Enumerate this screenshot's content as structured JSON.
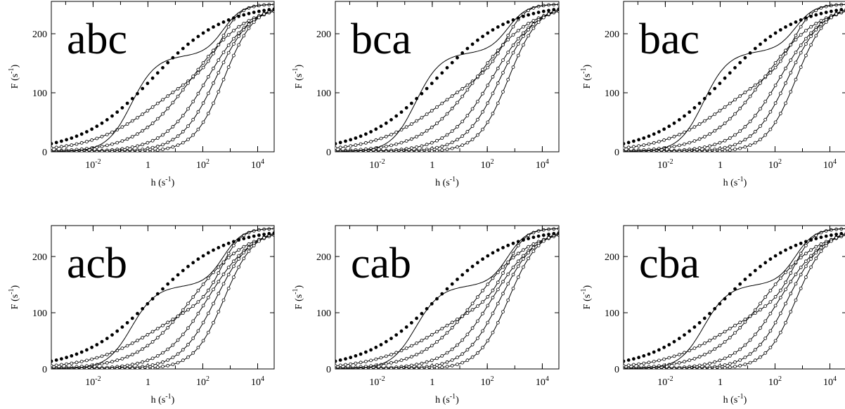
{
  "figure": {
    "background": "#ffffff",
    "ink": "#000000"
  },
  "axes_common": {
    "ylabel": "F (s",
    "ylabel_sup": "-1",
    "ylabel_end": ")",
    "xlabel": "h (s",
    "xlabel_sup": "-1",
    "xlabel_end": ")",
    "x_scale": "log",
    "xlim": [
      0.0003,
      40000
    ],
    "ylim": [
      0,
      250
    ],
    "x_ticks": [
      {
        "value": 0.01,
        "base": "10",
        "exp": "-2"
      },
      {
        "value": 1,
        "base": "1",
        "exp": ""
      },
      {
        "value": 100,
        "base": "10",
        "exp": "2"
      },
      {
        "value": 10000,
        "base": "10",
        "exp": "4"
      }
    ],
    "y_ticks": [
      {
        "value": 0,
        "label": "0"
      },
      {
        "value": 100,
        "label": "100"
      },
      {
        "value": 200,
        "label": "200"
      }
    ],
    "grid": false,
    "legend": "none"
  },
  "chart_data": [
    {
      "type": "line",
      "title": "abc",
      "xlabel": "h (s-1)",
      "ylabel": "F (s-1)",
      "x_scale": "log",
      "ylim": [
        0,
        250
      ],
      "series": [
        {
          "style": "line+open-markers",
          "mid": 2,
          "width": 1.2,
          "plateau": 160
        },
        {
          "style": "line+open-markers",
          "mid": 40,
          "width": 1.0,
          "plateau": 0
        },
        {
          "style": "line+open-markers",
          "mid": 150,
          "width": 0.8,
          "plateau": 0
        },
        {
          "style": "line+open-markers",
          "mid": 300,
          "width": 0.65,
          "plateau": 0
        },
        {
          "style": "line+open-markers",
          "mid": 600,
          "width": 0.55,
          "plateau": 0
        },
        {
          "style": "line-only",
          "mid": 0.25,
          "width": 0.45,
          "plateau": 163
        },
        {
          "style": "filled-markers",
          "mid": 1.5,
          "width": 1.3,
          "plateau": 0
        }
      ],
      "y_max": 250,
      "top_mid": 550,
      "top_width": 0.35
    },
    {
      "type": "line",
      "title": "bca",
      "xlabel": "h (s-1)",
      "ylabel": "F (s-1)",
      "x_scale": "log",
      "ylim": [
        0,
        250
      ],
      "series": [
        {
          "style": "line+open-markers",
          "mid": 2,
          "width": 1.2,
          "plateau": 160
        },
        {
          "style": "line+open-markers",
          "mid": 40,
          "width": 1.0,
          "plateau": 0
        },
        {
          "style": "line+open-markers",
          "mid": 150,
          "width": 0.8,
          "plateau": 0
        },
        {
          "style": "line+open-markers",
          "mid": 300,
          "width": 0.65,
          "plateau": 0
        },
        {
          "style": "line+open-markers",
          "mid": 600,
          "width": 0.55,
          "plateau": 0
        },
        {
          "style": "line-only",
          "mid": 0.25,
          "width": 0.45,
          "plateau": 168
        },
        {
          "style": "filled-markers",
          "mid": 1.5,
          "width": 1.3,
          "plateau": 0
        }
      ],
      "y_max": 250,
      "top_mid": 550,
      "top_width": 0.35
    },
    {
      "type": "line",
      "title": "bac",
      "xlabel": "h (s-1)",
      "ylabel": "F (s-1)",
      "x_scale": "log",
      "ylim": [
        0,
        250
      ],
      "series": [
        {
          "style": "line+open-markers",
          "mid": 2,
          "width": 1.2,
          "plateau": 160
        },
        {
          "style": "line+open-markers",
          "mid": 40,
          "width": 1.0,
          "plateau": 0
        },
        {
          "style": "line+open-markers",
          "mid": 150,
          "width": 0.8,
          "plateau": 0
        },
        {
          "style": "line+open-markers",
          "mid": 300,
          "width": 0.65,
          "plateau": 0
        },
        {
          "style": "line+open-markers",
          "mid": 600,
          "width": 0.55,
          "plateau": 0
        },
        {
          "style": "line-only",
          "mid": 0.25,
          "width": 0.45,
          "plateau": 170
        },
        {
          "style": "filled-markers",
          "mid": 1.5,
          "width": 1.3,
          "plateau": 0
        }
      ],
      "y_max": 250,
      "top_mid": 550,
      "top_width": 0.35
    },
    {
      "type": "line",
      "title": "acb",
      "xlabel": "h (s-1)",
      "ylabel": "F (s-1)",
      "x_scale": "log",
      "ylim": [
        0,
        250
      ],
      "series": [
        {
          "style": "line+open-markers",
          "mid": 2,
          "width": 1.2,
          "plateau": 140
        },
        {
          "style": "line+open-markers",
          "mid": 40,
          "width": 1.0,
          "plateau": 0
        },
        {
          "style": "line+open-markers",
          "mid": 150,
          "width": 0.8,
          "plateau": 0
        },
        {
          "style": "line+open-markers",
          "mid": 300,
          "width": 0.65,
          "plateau": 0
        },
        {
          "style": "line+open-markers",
          "mid": 600,
          "width": 0.55,
          "plateau": 0
        },
        {
          "style": "line-only",
          "mid": 0.25,
          "width": 0.45,
          "plateau": 148
        },
        {
          "style": "filled-markers",
          "mid": 1.5,
          "width": 1.3,
          "plateau": 0
        }
      ],
      "y_max": 250,
      "top_mid": 550,
      "top_width": 0.35
    },
    {
      "type": "line",
      "title": "cab",
      "xlabel": "h (s-1)",
      "ylabel": "F (s-1)",
      "x_scale": "log",
      "ylim": [
        0,
        250
      ],
      "series": [
        {
          "style": "line+open-markers",
          "mid": 2,
          "width": 1.2,
          "plateau": 140
        },
        {
          "style": "line+open-markers",
          "mid": 40,
          "width": 1.0,
          "plateau": 0
        },
        {
          "style": "line+open-markers",
          "mid": 150,
          "width": 0.8,
          "plateau": 0
        },
        {
          "style": "line+open-markers",
          "mid": 300,
          "width": 0.65,
          "plateau": 0
        },
        {
          "style": "line+open-markers",
          "mid": 600,
          "width": 0.55,
          "plateau": 0
        },
        {
          "style": "line-only",
          "mid": 0.25,
          "width": 0.45,
          "plateau": 148
        },
        {
          "style": "filled-markers",
          "mid": 1.5,
          "width": 1.3,
          "plateau": 0
        }
      ],
      "y_max": 250,
      "top_mid": 550,
      "top_width": 0.35
    },
    {
      "type": "line",
      "title": "cba",
      "xlabel": "h (s-1)",
      "ylabel": "F (s-1)",
      "x_scale": "log",
      "ylim": [
        0,
        250
      ],
      "series": [
        {
          "style": "line+open-markers",
          "mid": 2,
          "width": 1.2,
          "plateau": 140
        },
        {
          "style": "line+open-markers",
          "mid": 40,
          "width": 1.0,
          "plateau": 0
        },
        {
          "style": "line+open-markers",
          "mid": 150,
          "width": 0.8,
          "plateau": 0
        },
        {
          "style": "line+open-markers",
          "mid": 300,
          "width": 0.65,
          "plateau": 0
        },
        {
          "style": "line+open-markers",
          "mid": 600,
          "width": 0.55,
          "plateau": 0
        },
        {
          "style": "line-only",
          "mid": 0.25,
          "width": 0.45,
          "plateau": 150
        },
        {
          "style": "filled-markers",
          "mid": 1.5,
          "width": 1.3,
          "plateau": 0
        }
      ],
      "y_max": 250,
      "top_mid": 550,
      "top_width": 0.35
    }
  ]
}
